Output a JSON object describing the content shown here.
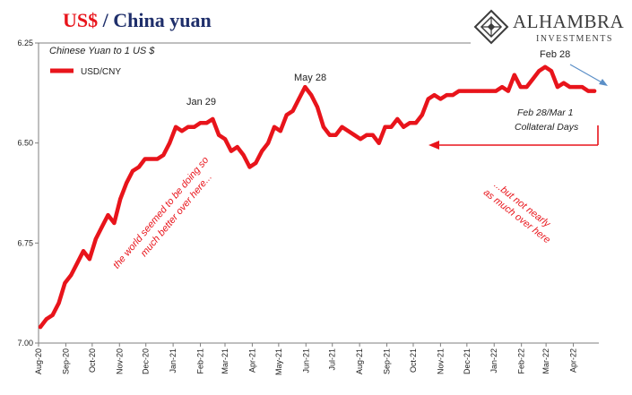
{
  "header": {
    "title_main": "US$",
    "title_rest": " / China yuan"
  },
  "logo": {
    "name": "ALHAMBRA",
    "tagline": "INVESTMENTS"
  },
  "colors": {
    "series": "#e8141b",
    "title_accent": "#e8141b",
    "title_dark": "#1f2f6b",
    "arrow_blue": "#5b8fc7",
    "axis": "#7f7f7f"
  },
  "chart_data": {
    "type": "line",
    "subtitle": "Chinese Yuan to 1 US $",
    "xlabel": "",
    "ylabel": "",
    "ylim": [
      6.25,
      7.0
    ],
    "y_inverted": true,
    "y_ticks": [
      "6.25",
      "6.50",
      "6.75",
      "7.00"
    ],
    "y_tick_values": [
      6.25,
      6.5,
      6.75,
      7.0
    ],
    "x_range": [
      "2020-08-01",
      "2022-04-30"
    ],
    "x_ticks": [
      "Aug-20",
      "Sep-20",
      "Oct-20",
      "Nov-20",
      "Dec-20",
      "Jan-21",
      "Feb-21",
      "Mar-21",
      "Apr-21",
      "May-21",
      "Jun-21",
      "Jul-21",
      "Aug-21",
      "Sep-21",
      "Oct-21",
      "Nov-21",
      "Dec-21",
      "Jan-22",
      "Feb-22",
      "Mar-22",
      "Apr-22"
    ],
    "x_tick_dates": [
      "2020-08-01",
      "2020-09-01",
      "2020-10-01",
      "2020-11-01",
      "2020-12-01",
      "2021-01-01",
      "2021-02-01",
      "2021-03-01",
      "2021-04-01",
      "2021-05-01",
      "2021-06-01",
      "2021-07-01",
      "2021-08-01",
      "2021-09-01",
      "2021-10-01",
      "2021-11-01",
      "2021-12-01",
      "2022-01-01",
      "2022-02-01",
      "2022-03-01",
      "2022-04-01"
    ],
    "grid": false,
    "legend": {
      "position": "top-left",
      "entries": [
        "USD/CNY"
      ]
    },
    "series": [
      {
        "name": "USD/CNY",
        "x": [
          "2020-08-03",
          "2020-08-10",
          "2020-08-17",
          "2020-08-24",
          "2020-08-31",
          "2020-09-07",
          "2020-09-14",
          "2020-09-21",
          "2020-09-28",
          "2020-10-05",
          "2020-10-12",
          "2020-10-19",
          "2020-10-26",
          "2020-11-02",
          "2020-11-09",
          "2020-11-16",
          "2020-11-23",
          "2020-11-30",
          "2020-12-07",
          "2020-12-14",
          "2020-12-21",
          "2020-12-28",
          "2021-01-04",
          "2021-01-11",
          "2021-01-18",
          "2021-01-25",
          "2021-02-01",
          "2021-02-08",
          "2021-02-15",
          "2021-02-22",
          "2021-03-01",
          "2021-03-08",
          "2021-03-15",
          "2021-03-22",
          "2021-03-29",
          "2021-04-05",
          "2021-04-12",
          "2021-04-19",
          "2021-04-26",
          "2021-05-03",
          "2021-05-10",
          "2021-05-17",
          "2021-05-24",
          "2021-05-31",
          "2021-06-07",
          "2021-06-14",
          "2021-06-21",
          "2021-06-28",
          "2021-07-05",
          "2021-07-12",
          "2021-07-19",
          "2021-07-26",
          "2021-08-02",
          "2021-08-09",
          "2021-08-16",
          "2021-08-23",
          "2021-08-30",
          "2021-09-06",
          "2021-09-13",
          "2021-09-20",
          "2021-09-27",
          "2021-10-04",
          "2021-10-11",
          "2021-10-18",
          "2021-10-25",
          "2021-11-01",
          "2021-11-08",
          "2021-11-15",
          "2021-11-22",
          "2021-11-29",
          "2021-12-06",
          "2021-12-13",
          "2021-12-20",
          "2021-12-27",
          "2022-01-03",
          "2022-01-10",
          "2022-01-17",
          "2022-01-24",
          "2022-01-31",
          "2022-02-07",
          "2022-02-14",
          "2022-02-21",
          "2022-02-28",
          "2022-03-07",
          "2022-03-14",
          "2022-03-21",
          "2022-03-28",
          "2022-04-04",
          "2022-04-11",
          "2022-04-18",
          "2022-04-25"
        ],
        "values": [
          6.96,
          6.94,
          6.93,
          6.9,
          6.85,
          6.83,
          6.8,
          6.77,
          6.79,
          6.74,
          6.71,
          6.68,
          6.7,
          6.64,
          6.6,
          6.57,
          6.56,
          6.54,
          6.54,
          6.54,
          6.53,
          6.5,
          6.46,
          6.47,
          6.46,
          6.46,
          6.45,
          6.45,
          6.44,
          6.48,
          6.49,
          6.52,
          6.51,
          6.53,
          6.56,
          6.55,
          6.52,
          6.5,
          6.46,
          6.47,
          6.43,
          6.42,
          6.39,
          6.36,
          6.38,
          6.41,
          6.46,
          6.48,
          6.48,
          6.46,
          6.47,
          6.48,
          6.49,
          6.48,
          6.48,
          6.5,
          6.46,
          6.46,
          6.44,
          6.46,
          6.45,
          6.45,
          6.43,
          6.39,
          6.38,
          6.39,
          6.38,
          6.38,
          6.37,
          6.37,
          6.37,
          6.37,
          6.37,
          6.37,
          6.37,
          6.36,
          6.37,
          6.33,
          6.36,
          6.36,
          6.34,
          6.32,
          6.31,
          6.32,
          6.36,
          6.35,
          6.36,
          6.36,
          6.36,
          6.37,
          6.37
        ]
      }
    ],
    "annotations": [
      {
        "id": "jan29",
        "text": "Jan 29",
        "x": "2021-01-29",
        "y": 6.48
      },
      {
        "id": "may28",
        "text": "May 28",
        "x": "2021-05-28",
        "y": 6.4
      },
      {
        "id": "feb28",
        "text": "Feb 28",
        "x": "2022-02-28",
        "y": 6.31
      },
      {
        "id": "collateral1",
        "text": "Feb 28/Mar 1"
      },
      {
        "id": "collateral2",
        "text": "Collateral Days"
      },
      {
        "id": "world1",
        "text": "the world seemed to be doing so"
      },
      {
        "id": "world2",
        "text": "much better over here..."
      },
      {
        "id": "notnearly1",
        "text": "...but not nearly"
      },
      {
        "id": "notnearly2",
        "text": "as much over here"
      }
    ]
  }
}
